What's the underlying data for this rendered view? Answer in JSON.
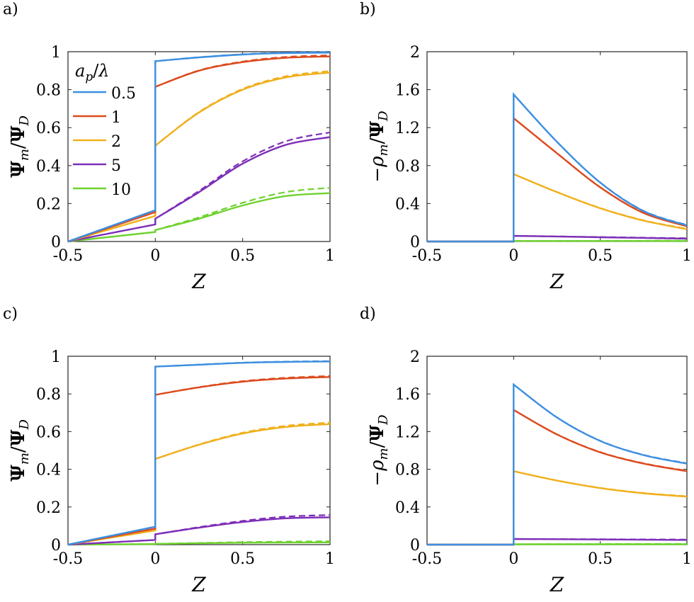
{
  "colors": {
    "0.5": "#3d8fe0",
    "1": "#dc4b1e",
    "2": "#f0b01d",
    "5": "#7d2fb8",
    "10": "#6fd12e"
  },
  "legend": {
    "title": "a_p/λ",
    "entries": [
      "0.5",
      "1",
      "2",
      "5",
      "10"
    ]
  },
  "chart_data": [
    {
      "panel": "a)",
      "type": "line",
      "xlabel": "Z",
      "ylabel": "Ψm/ΨD",
      "xlim": [
        -0.5,
        1
      ],
      "ylim": [
        0,
        1
      ],
      "xticks": [
        "-0.5",
        "0",
        "0.5",
        "1"
      ],
      "yticks": [
        "0",
        "0.2",
        "0.4",
        "0.6",
        "0.8",
        "1"
      ],
      "line_styles": [
        "solid",
        "dashed"
      ],
      "series": [
        {
          "name": "0.5",
          "pre": [
            -0.5,
            0.0,
            0.0,
            0.165
          ],
          "post": [
            [
              0,
              0.95
            ],
            [
              0.25,
              0.97
            ],
            [
              0.5,
              0.985
            ],
            [
              0.75,
              0.993
            ],
            [
              1,
              0.995
            ]
          ],
          "dashed_offset": 0.003
        },
        {
          "name": "1",
          "pre": [
            -0.5,
            0.0,
            0.0,
            0.155
          ],
          "post": [
            [
              0,
              0.815
            ],
            [
              0.25,
              0.9
            ],
            [
              0.5,
              0.945
            ],
            [
              0.75,
              0.968
            ],
            [
              1,
              0.975
            ]
          ],
          "dashed_offset": 0.006
        },
        {
          "name": "2",
          "pre": [
            -0.5,
            0.0,
            0.0,
            0.135
          ],
          "post": [
            [
              0,
              0.505
            ],
            [
              0.25,
              0.68
            ],
            [
              0.5,
              0.8
            ],
            [
              0.75,
              0.865
            ],
            [
              1,
              0.89
            ]
          ],
          "dashed_offset": 0.008
        },
        {
          "name": "5",
          "pre": [
            -0.5,
            0.0,
            0.0,
            0.09
          ],
          "post": [
            [
              0,
              0.12
            ],
            [
              0.25,
              0.26
            ],
            [
              0.5,
              0.41
            ],
            [
              0.75,
              0.51
            ],
            [
              1,
              0.55
            ]
          ],
          "dashed_offset": 0.025
        },
        {
          "name": "10",
          "pre": [
            -0.5,
            0.0,
            0.0,
            0.05
          ],
          "post": [
            [
              0,
              0.06
            ],
            [
              0.25,
              0.12
            ],
            [
              0.5,
              0.19
            ],
            [
              0.75,
              0.24
            ],
            [
              1,
              0.255
            ]
          ],
          "dashed_offset": 0.028
        }
      ]
    },
    {
      "panel": "b)",
      "type": "line",
      "xlabel": "Z",
      "ylabel": "−ρm/ΨD",
      "xlim": [
        -0.5,
        1
      ],
      "ylim": [
        0,
        2
      ],
      "xticks": [
        "-0.5",
        "0",
        "0.5",
        "1"
      ],
      "yticks": [
        "0",
        "0.4",
        "0.8",
        "1.2",
        "1.6",
        "2"
      ],
      "line_styles": [
        "solid",
        "dashed"
      ],
      "series": [
        {
          "name": "0.5",
          "post": [
            [
              0,
              1.55
            ],
            [
              0.25,
              1.05
            ],
            [
              0.5,
              0.62
            ],
            [
              0.75,
              0.32
            ],
            [
              1,
              0.17
            ]
          ]
        },
        {
          "name": "1",
          "post": [
            [
              0,
              1.3
            ],
            [
              0.25,
              0.93
            ],
            [
              0.5,
              0.57
            ],
            [
              0.75,
              0.3
            ],
            [
              1,
              0.16
            ]
          ]
        },
        {
          "name": "2",
          "post": [
            [
              0,
              0.71
            ],
            [
              0.25,
              0.52
            ],
            [
              0.5,
              0.35
            ],
            [
              0.75,
              0.22
            ],
            [
              1,
              0.13
            ]
          ]
        },
        {
          "name": "5",
          "post": [
            [
              0,
              0.06
            ],
            [
              0.5,
              0.045
            ],
            [
              1,
              0.03
            ]
          ]
        },
        {
          "name": "10",
          "post": [
            [
              0,
              0.005
            ],
            [
              1,
              0.005
            ]
          ]
        }
      ]
    },
    {
      "panel": "c)",
      "type": "line",
      "xlabel": "Z",
      "ylabel": "Ψm/ΨD",
      "xlim": [
        -0.5,
        1
      ],
      "ylim": [
        0,
        1
      ],
      "xticks": [
        "-0.5",
        "0",
        "0.5",
        "1"
      ],
      "yticks": [
        "0",
        "0.2",
        "0.4",
        "0.6",
        "0.8",
        "1"
      ],
      "line_styles": [
        "solid",
        "dashed"
      ],
      "series": [
        {
          "name": "0.5",
          "pre": [
            -0.5,
            0.0,
            0.0,
            0.095
          ],
          "post": [
            [
              0,
              0.945
            ],
            [
              0.25,
              0.955
            ],
            [
              0.5,
              0.965
            ],
            [
              0.75,
              0.97
            ],
            [
              1,
              0.972
            ]
          ],
          "dashed_offset": 0.002
        },
        {
          "name": "1",
          "pre": [
            -0.5,
            0.0,
            0.0,
            0.085
          ],
          "post": [
            [
              0,
              0.795
            ],
            [
              0.25,
              0.835
            ],
            [
              0.5,
              0.865
            ],
            [
              0.75,
              0.882
            ],
            [
              1,
              0.89
            ]
          ],
          "dashed_offset": 0.005
        },
        {
          "name": "2",
          "pre": [
            -0.5,
            0.0,
            0.0,
            0.075
          ],
          "post": [
            [
              0,
              0.455
            ],
            [
              0.25,
              0.53
            ],
            [
              0.5,
              0.59
            ],
            [
              0.75,
              0.625
            ],
            [
              1,
              0.64
            ]
          ],
          "dashed_offset": 0.008
        },
        {
          "name": "5",
          "pre": [
            -0.5,
            0.0,
            0.0,
            0.025
          ],
          "post": [
            [
              0,
              0.055
            ],
            [
              0.25,
              0.09
            ],
            [
              0.5,
              0.12
            ],
            [
              0.75,
              0.14
            ],
            [
              1,
              0.145
            ]
          ],
          "dashed_offset": 0.012
        },
        {
          "name": "10",
          "pre": [
            -0.5,
            0.0,
            0.0,
            0.003
          ],
          "post": [
            [
              0,
              0.004
            ],
            [
              0.5,
              0.01
            ],
            [
              1,
              0.012
            ]
          ],
          "dashed_offset": 0.006
        }
      ]
    },
    {
      "panel": "d)",
      "type": "line",
      "xlabel": "Z",
      "ylabel": "−ρm/ΨD",
      "xlim": [
        -0.5,
        1
      ],
      "ylim": [
        0,
        2
      ],
      "xticks": [
        "-0.5",
        "0",
        "0.5",
        "1"
      ],
      "yticks": [
        "0",
        "0.4",
        "0.8",
        "1.2",
        "1.6",
        "2"
      ],
      "line_styles": [
        "solid",
        "dashed"
      ],
      "series": [
        {
          "name": "0.5",
          "post": [
            [
              0,
              1.7
            ],
            [
              0.25,
              1.35
            ],
            [
              0.5,
              1.1
            ],
            [
              0.75,
              0.95
            ],
            [
              1,
              0.86
            ]
          ]
        },
        {
          "name": "1",
          "post": [
            [
              0,
              1.43
            ],
            [
              0.25,
              1.17
            ],
            [
              0.5,
              0.98
            ],
            [
              0.75,
              0.86
            ],
            [
              1,
              0.78
            ]
          ]
        },
        {
          "name": "2",
          "post": [
            [
              0,
              0.78
            ],
            [
              0.25,
              0.68
            ],
            [
              0.5,
              0.6
            ],
            [
              0.75,
              0.545
            ],
            [
              1,
              0.51
            ]
          ]
        },
        {
          "name": "5",
          "post": [
            [
              0,
              0.06
            ],
            [
              0.5,
              0.055
            ],
            [
              1,
              0.05
            ]
          ]
        },
        {
          "name": "10",
          "post": [
            [
              0,
              0.004
            ],
            [
              1,
              0.004
            ]
          ]
        }
      ]
    }
  ]
}
